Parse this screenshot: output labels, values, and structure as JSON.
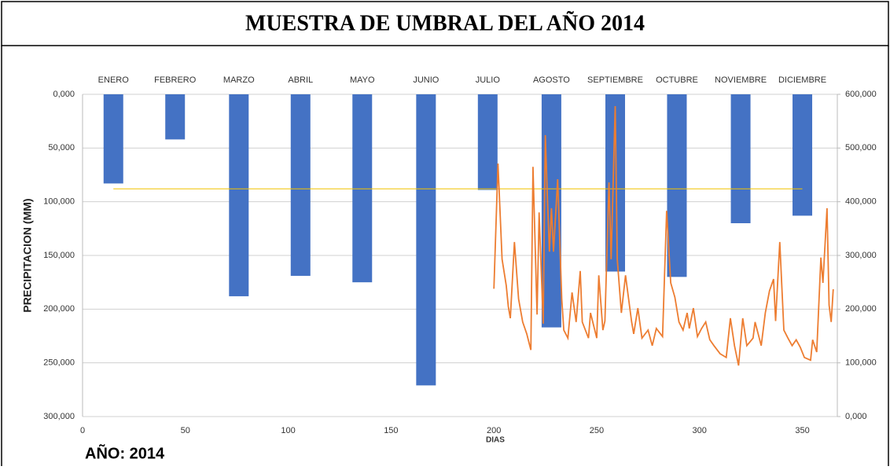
{
  "header": {
    "title": "MUESTRA DE UMBRAL DEL AÑO 2014"
  },
  "footer": {
    "text": "AÑO: 2014"
  },
  "chart_data": {
    "type": "bar",
    "xlabel": "DIAS",
    "ylabel": "PRECIPITACION (MM)",
    "categories": [
      "ENERO",
      "FEBRERO",
      "MARZO",
      "ABRIL",
      "MAYO",
      "JUNIO",
      "JULIO",
      "AGOSTO",
      "SEPTIEMBRE",
      "OCTUBRE",
      "NOVIEMBRE",
      "DICIEMBRE"
    ],
    "xlim": [
      0,
      367
    ],
    "xticks": [
      0,
      50,
      100,
      150,
      200,
      250,
      300,
      350
    ],
    "ylim": [
      0,
      300
    ],
    "y_inverted": true,
    "yticks": [
      {
        "value": 0,
        "label": "0,000"
      },
      {
        "value": 50,
        "label": "50,000"
      },
      {
        "value": 100,
        "label": "100,000"
      },
      {
        "value": 150,
        "label": "150,000"
      },
      {
        "value": 200,
        "label": "200,000"
      },
      {
        "value": 250,
        "label": "250,000"
      },
      {
        "value": 300,
        "label": "300,000"
      }
    ],
    "y2lim": [
      0,
      600
    ],
    "y2ticks": [
      {
        "value": 0,
        "label": "0,000"
      },
      {
        "value": 100,
        "label": "100,000"
      },
      {
        "value": 200,
        "label": "200,000"
      },
      {
        "value": 300,
        "label": "300,000"
      },
      {
        "value": 400,
        "label": "400,000"
      },
      {
        "value": 500,
        "label": "500,000"
      },
      {
        "value": 600,
        "label": "600,000"
      }
    ],
    "grid": true,
    "series": [
      {
        "type": "bar",
        "color": "#4472c4",
        "x": [
          15,
          45,
          76,
          106,
          136,
          167,
          197,
          228,
          259,
          289,
          320,
          350
        ],
        "values": [
          83,
          42,
          188,
          169,
          175,
          271,
          89,
          217,
          165,
          170,
          120,
          113
        ]
      },
      {
        "type": "line",
        "color": "#f2c200",
        "x": [
          15,
          350
        ],
        "values": [
          88,
          88
        ]
      },
      {
        "type": "line",
        "axis": "y2",
        "color": "#ed7d31",
        "x": [
          200,
          202,
          204,
          206,
          207,
          208,
          210,
          212,
          214,
          216,
          218,
          219,
          221,
          222,
          224,
          225,
          226,
          227,
          228,
          229,
          231,
          233,
          234,
          236,
          238,
          240,
          242,
          243,
          246,
          247,
          250,
          251,
          253,
          254,
          256,
          257,
          259,
          260,
          262,
          264,
          267,
          268,
          270,
          272,
          275,
          277,
          279,
          282,
          284,
          286,
          288,
          290,
          292,
          294,
          295,
          297,
          299,
          301,
          303,
          305,
          307,
          310,
          313,
          315,
          317,
          319,
          321,
          323,
          326,
          327,
          330,
          332,
          334,
          336,
          337,
          339,
          341,
          343,
          345,
          347,
          349,
          351,
          354,
          355,
          357,
          359,
          360,
          362,
          363,
          364,
          365
        ],
        "values": [
          238,
          471,
          293,
          244,
          205,
          183,
          325,
          219,
          176,
          154,
          124,
          465,
          190,
          380,
          173,
          524,
          410,
          307,
          388,
          307,
          442,
          219,
          161,
          146,
          231,
          176,
          271,
          176,
          146,
          193,
          146,
          263,
          161,
          178,
          436,
          293,
          578,
          293,
          193,
          263,
          176,
          154,
          202,
          146,
          161,
          132,
          164,
          149,
          383,
          249,
          222,
          176,
          161,
          193,
          164,
          202,
          149,
          164,
          176,
          143,
          132,
          117,
          110,
          183,
          132,
          95,
          183,
          132,
          146,
          176,
          132,
          193,
          234,
          256,
          178,
          325,
          161,
          146,
          132,
          143,
          129,
          110,
          105,
          143,
          120,
          296,
          249,
          388,
          208,
          176,
          237
        ]
      }
    ]
  }
}
